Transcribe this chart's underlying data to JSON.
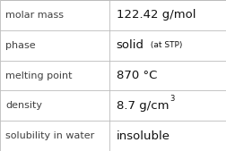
{
  "rows": [
    {
      "label": "molar mass",
      "value": "122.42 g/mol",
      "value_bold": false
    },
    {
      "label": "phase",
      "value": "solid",
      "value_suffix": " (at STP)",
      "value_bold": false
    },
    {
      "label": "melting point",
      "value": "870 °C",
      "value_bold": false
    },
    {
      "label": "density",
      "value": "8.7 g/cm",
      "superscript": "3",
      "value_bold": false
    },
    {
      "label": "solubility in water",
      "value": "insoluble",
      "value_bold": false
    }
  ],
  "col_split": 0.485,
  "background_color": "#ffffff",
  "border_color": "#bbbbbb",
  "label_fontsize": 8.0,
  "value_fontsize": 9.5,
  "suffix_fontsize": 6.5,
  "super_fontsize": 6.0,
  "label_color": "#404040",
  "value_color": "#111111",
  "figwidth": 2.52,
  "figheight": 1.69,
  "dpi": 100
}
